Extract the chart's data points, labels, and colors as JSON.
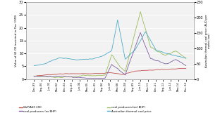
{
  "ylabel_left": "Value of $1.00 invested in Dec 1999",
  "ylabel_right": "Australian thermal coal price (AUD per\nmetric ton)",
  "ylim_left": [
    0,
    30
  ],
  "ylim_right": [
    0,
    250
  ],
  "yticks_left": [
    0,
    5,
    10,
    15,
    20,
    25,
    30
  ],
  "yticks_right": [
    0,
    50,
    100,
    150,
    200,
    250
  ],
  "x_labels": [
    "Dec-99",
    "Sep-00",
    "Jun-01",
    "Mar-02",
    "Dec-02",
    "Sep-03",
    "Jun-04",
    "Mar-05",
    "Dec-05",
    "Sep-06",
    "Jun-07",
    "Mar-08",
    "Dec-08",
    "Sep-09",
    "Jun-10",
    "Mar-11",
    "Dec-11",
    "Sep-12",
    "Jun-13",
    "Mar-14",
    "Dec-14"
  ],
  "colors": {
    "sp500": "#c0504d",
    "coal_incl": "#9bbb59",
    "coal_excl": "#7f5fa0",
    "coal_price": "#4bacc6"
  },
  "legend": [
    {
      "label": "S&P/ASX 200",
      "color": "#c0504d"
    },
    {
      "label": "coal producers(incl BHP)",
      "color": "#9bbb59"
    },
    {
      "label": "coal producers (ex BHP)",
      "color": "#7f5fa0"
    },
    {
      "label": "Australian thermal coal price",
      "color": "#4bacc6"
    }
  ],
  "background": "#ffffff",
  "plot_bg": "#f2f2f2"
}
